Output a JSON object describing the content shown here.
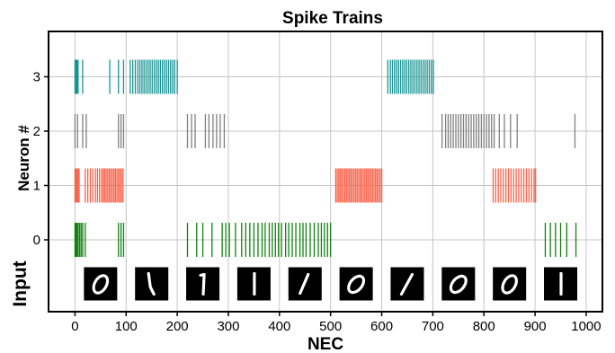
{
  "chart_data": {
    "type": "spike_raster",
    "title": "Spike Trains",
    "xlabel": "NEC",
    "ylabel": "Neuron #",
    "input_label": "Input",
    "xlim": [
      -50,
      1030
    ],
    "x_ticks": [
      0,
      100,
      200,
      300,
      400,
      500,
      600,
      700,
      800,
      900,
      1000
    ],
    "y_ticks": [
      0,
      1,
      2,
      3
    ],
    "grid": true,
    "colors": {
      "neuron_0": "#138013",
      "neuron_1": "#f9634b",
      "neuron_2": "#808080",
      "neuron_3": "#189494",
      "grid": "#c6c6c6",
      "axes": "#000000"
    },
    "series": [
      {
        "neuron": 3,
        "spikes": [
          0,
          1,
          2,
          3,
          4,
          5,
          6,
          15,
          68,
          85,
          95,
          108,
          113,
          118,
          123,
          127,
          131,
          135,
          139,
          143,
          147,
          151,
          155,
          159,
          163,
          167,
          171,
          175,
          179,
          183,
          187,
          191,
          195,
          200,
          612,
          617,
          621,
          625,
          629,
          633,
          637,
          641,
          645,
          649,
          653,
          657,
          661,
          665,
          669,
          673,
          677,
          681,
          685,
          689,
          693,
          697,
          701
        ]
      },
      {
        "neuron": 2,
        "spikes": [
          0,
          5,
          15,
          22,
          85,
          90,
          95,
          220,
          228,
          235,
          255,
          262,
          270,
          277,
          284,
          292,
          718,
          725,
          730,
          735,
          740,
          745,
          750,
          755,
          760,
          765,
          770,
          775,
          780,
          785,
          790,
          795,
          800,
          805,
          810,
          815,
          820,
          830,
          840,
          852,
          865,
          978
        ]
      },
      {
        "neuron": 1,
        "spikes": [
          0,
          2,
          4,
          6,
          8,
          20,
          25,
          30,
          35,
          40,
          44,
          48,
          52,
          55,
          58,
          61,
          64,
          67,
          70,
          73,
          76,
          79,
          82,
          85,
          88,
          91,
          94,
          510,
          513,
          516,
          519,
          522,
          525,
          528,
          531,
          534,
          537,
          540,
          543,
          546,
          549,
          552,
          555,
          558,
          561,
          564,
          567,
          570,
          573,
          576,
          579,
          582,
          585,
          588,
          591,
          594,
          597,
          600,
          818,
          823,
          828,
          833,
          838,
          843,
          848,
          853,
          858,
          863,
          868,
          873,
          878,
          883,
          888,
          893,
          898,
          901
        ]
      },
      {
        "neuron": 0,
        "spikes": [
          0,
          1,
          2,
          3,
          4,
          6,
          9,
          12,
          15,
          20,
          85,
          90,
          95,
          220,
          238,
          250,
          268,
          288,
          295,
          302,
          314,
          326,
          334,
          342,
          350,
          358,
          366,
          372,
          380,
          386,
          392,
          398,
          404,
          412,
          418,
          425,
          432,
          440,
          446,
          452,
          460,
          468,
          476,
          482,
          488,
          494,
          500,
          920,
          930,
          940,
          950,
          962,
          980
        ]
      }
    ],
    "input_images": [
      {
        "digit": "0",
        "x": 50
      },
      {
        "digit": "1",
        "x": 150
      },
      {
        "digit": "1",
        "x": 250
      },
      {
        "digit": "1",
        "x": 350
      },
      {
        "digit": "1",
        "x": 450
      },
      {
        "digit": "0",
        "x": 550
      },
      {
        "digit": "1",
        "x": 650
      },
      {
        "digit": "0",
        "x": 750
      },
      {
        "digit": "0",
        "x": 850
      },
      {
        "digit": "1",
        "x": 950
      }
    ]
  }
}
